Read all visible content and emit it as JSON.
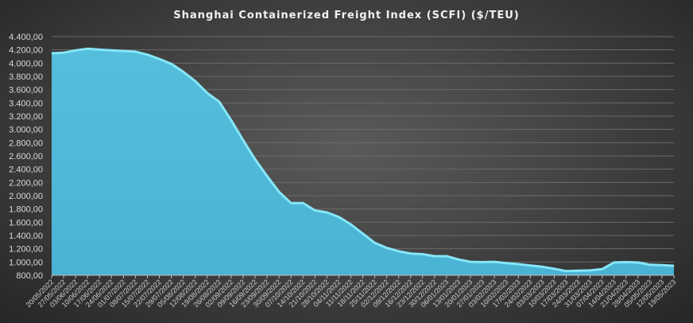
{
  "chart_data": {
    "type": "area",
    "title": "Shanghai Containerized Freight Index  (SCFI) ($/TEU)",
    "xlabel": "",
    "ylabel": "",
    "ylim": [
      800,
      4400
    ],
    "yticks": [
      800,
      1000,
      1200,
      1400,
      1600,
      1800,
      2000,
      2200,
      2400,
      2600,
      2800,
      3000,
      3200,
      3400,
      3600,
      3800,
      4000,
      4200,
      4400
    ],
    "ytick_labels": [
      "800,00",
      "1.000,00",
      "1.200,00",
      "1.400,00",
      "1.600,00",
      "1.800,00",
      "2.000,00",
      "2.200,00",
      "2.400,00",
      "2.600,00",
      "2.800,00",
      "3.000,00",
      "3.200,00",
      "3.400,00",
      "3.600,00",
      "3.800,00",
      "4.000,00",
      "4.200,00",
      "4.400,00"
    ],
    "grid": true,
    "legend": "none",
    "categories": [
      "20/05/2022",
      "27/05/2022",
      "03/06/2022",
      "10/06/2022",
      "17/06/2022",
      "24/06/2022",
      "01/07/2022",
      "08/07/2022",
      "15/07/2022",
      "22/07/2022",
      "29/07/2022",
      "05/08/2022",
      "12/08/2022",
      "19/08/2022",
      "26/08/2022",
      "02/09/2022",
      "09/09/2022",
      "16/09/2022",
      "23/09/2022",
      "30/09/2022",
      "07/10/2022",
      "14/10/2022",
      "21/10/2022",
      "28/10/2022",
      "04/11/2022",
      "11/11/2022",
      "18/11/2022",
      "25/11/2022",
      "02/12/2022",
      "09/12/2022",
      "16/12/2022",
      "23/12/2022",
      "30/12/2022",
      "06/01/2023",
      "13/01/2023",
      "20/01/2023",
      "27/01/2023",
      "03/02/2023",
      "10/02/2023",
      "17/02/2023",
      "24/02/2023",
      "03/03/2023",
      "10/03/2023",
      "17/03/2023",
      "24/03/2023",
      "31/03/2023",
      "07/04/2023",
      "14/04/2023",
      "21/04/2023",
      "28/04/2023",
      "05/05/2023",
      "12/05/2023",
      "19/05/2023"
    ],
    "series": [
      {
        "name": "SCFI",
        "color": "#4fb8d8",
        "line_color": "#86e6f8",
        "values": [
          4160,
          4170,
          4205,
          4230,
          4215,
          4205,
          4195,
          4185,
          4140,
          4075,
          4000,
          3880,
          3740,
          3560,
          3430,
          3150,
          2850,
          2560,
          2310,
          2070,
          1900,
          1900,
          1790,
          1760,
          1690,
          1580,
          1440,
          1300,
          1225,
          1175,
          1140,
          1130,
          1100,
          1100,
          1050,
          1015,
          1010,
          1015,
          995,
          980,
          960,
          940,
          910,
          875,
          880,
          885,
          905,
          1005,
          1010,
          1005,
          970,
          965,
          955
        ]
      }
    ]
  }
}
